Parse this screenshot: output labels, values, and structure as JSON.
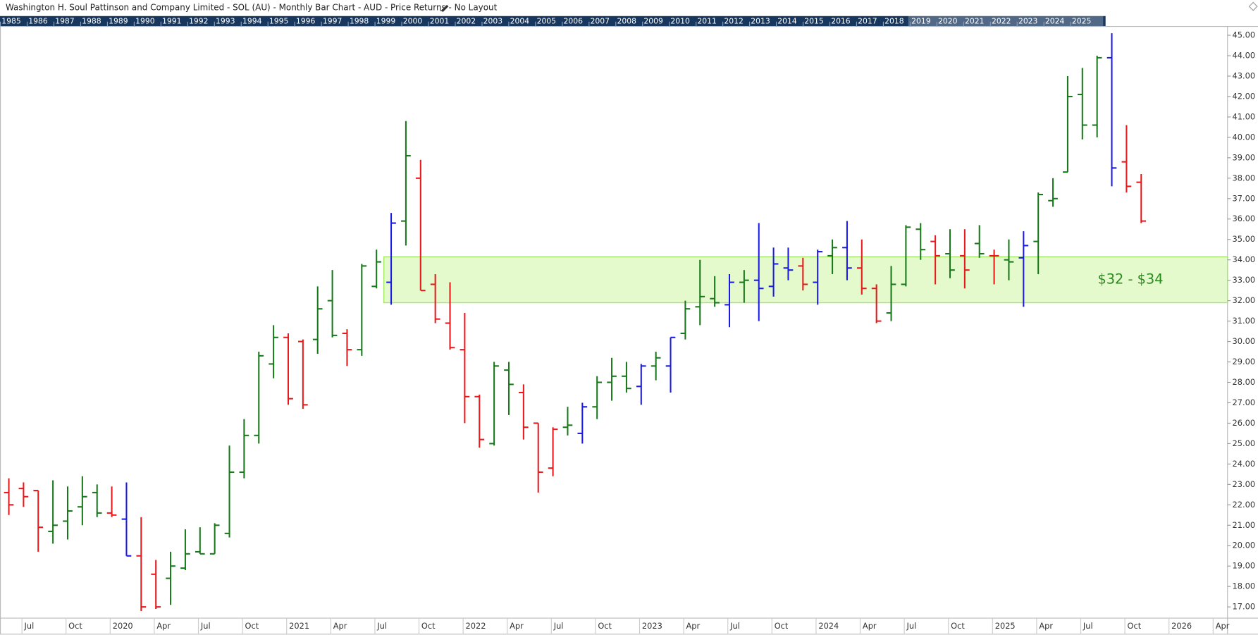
{
  "chart_data": {
    "type": "ohlc",
    "title": "Washington H. Soul Pattinson and Company Limited - SOL (AU) - Monthly Bar Chart - AUD - Price Returns - No Layout",
    "years": [
      "1985",
      "1986",
      "1987",
      "1988",
      "1989",
      "1990",
      "1991",
      "1992",
      "1993",
      "1994",
      "1995",
      "1996",
      "1997",
      "1998",
      "1999",
      "2000",
      "2001",
      "2002",
      "2003",
      "2004",
      "2005",
      "2006",
      "2007",
      "2008",
      "2009",
      "2010",
      "2011",
      "2012",
      "2013",
      "2014",
      "2015",
      "2016",
      "2017",
      "2018",
      "2019",
      "2020",
      "2021",
      "2022",
      "2023",
      "2024",
      "2025"
    ],
    "categories": [
      null,
      "Jul",
      null,
      null,
      "Oct",
      null,
      null,
      "2020",
      null,
      null,
      "Apr",
      null,
      null,
      "Jul",
      null,
      null,
      "Oct",
      null,
      null,
      "2021",
      null,
      null,
      "Apr",
      null,
      null,
      "Jul",
      null,
      null,
      "Oct",
      null,
      null,
      "2022",
      null,
      null,
      "Apr",
      null,
      null,
      "Jul",
      null,
      null,
      "Oct",
      null,
      null,
      "2023",
      null,
      null,
      "Apr",
      null,
      null,
      "Jul",
      null,
      null,
      "Oct",
      null,
      null,
      "2024",
      null,
      null,
      "Apr",
      null,
      null,
      "Jul",
      null,
      null,
      "Oct",
      null,
      null,
      "2025",
      null,
      null,
      "Apr",
      null,
      null,
      "Jul",
      null,
      null,
      "Oct",
      null,
      null,
      "2026",
      null,
      null,
      "Apr"
    ],
    "open": [
      22.6,
      22.8,
      22.7,
      20.7,
      21.2,
      21.9,
      22.6,
      21.6,
      21.3,
      19.5,
      18.6,
      18.4,
      18.9,
      19.7,
      19.6,
      20.6,
      23.6,
      25.4,
      28.9,
      30.2,
      30.0,
      30.1,
      32.0,
      30.4,
      29.6,
      32.7,
      32.9,
      35.9,
      38.0,
      32.8,
      30.9,
      29.6,
      27.3,
      25.0,
      28.6,
      27.5,
      26.0,
      23.8,
      25.8,
      25.5,
      26.8,
      28.0,
      28.3,
      27.8,
      28.8,
      28.8,
      30.4,
      31.7,
      32.1,
      31.8,
      32.9,
      33.0,
      32.7,
      33.6,
      33.7,
      32.9,
      34.2,
      34.6,
      33.6,
      32.6,
      31.4,
      32.8,
      35.5,
      34.9,
      34.3,
      34.2,
      34.8,
      34.2,
      34.0,
      34.1,
      34.9,
      36.9,
      38.3,
      42.1,
      40.6,
      43.9,
      38.8,
      37.8,
      null,
      null,
      null,
      null,
      null
    ],
    "high": [
      23.3,
      23.1,
      22.7,
      23.2,
      22.9,
      23.4,
      23.0,
      22.9,
      23.1,
      21.4,
      19.3,
      19.7,
      20.8,
      20.9,
      21.1,
      24.9,
      26.2,
      29.5,
      30.8,
      30.4,
      30.1,
      32.7,
      33.5,
      30.6,
      33.8,
      34.5,
      36.3,
      40.8,
      38.9,
      33.3,
      32.9,
      31.4,
      27.4,
      29.0,
      29.0,
      27.9,
      26.0,
      25.8,
      26.8,
      27.0,
      28.3,
      29.2,
      29.0,
      28.9,
      29.5,
      30.2,
      32.0,
      34.0,
      33.2,
      33.3,
      33.5,
      35.8,
      34.6,
      34.6,
      34.1,
      34.5,
      35.0,
      35.9,
      35.0,
      32.8,
      33.7,
      35.7,
      35.8,
      35.2,
      35.5,
      35.5,
      35.7,
      34.5,
      35.0,
      35.4,
      37.3,
      38.0,
      43.0,
      43.4,
      44.0,
      45.1,
      40.6,
      38.2,
      null,
      null,
      null,
      null,
      null
    ],
    "low": [
      21.5,
      21.9,
      19.7,
      20.1,
      20.3,
      21.0,
      21.4,
      21.4,
      19.5,
      16.8,
      16.9,
      17.1,
      18.8,
      19.6,
      19.6,
      20.4,
      23.3,
      25.0,
      28.2,
      26.9,
      26.7,
      29.4,
      30.2,
      28.8,
      29.3,
      32.6,
      31.8,
      34.7,
      32.5,
      30.9,
      29.6,
      26.0,
      24.8,
      24.9,
      26.4,
      25.2,
      22.6,
      23.4,
      25.4,
      25.0,
      26.2,
      27.1,
      27.5,
      26.9,
      28.1,
      27.5,
      30.1,
      30.8,
      31.7,
      30.7,
      31.9,
      31.0,
      32.2,
      33.0,
      32.5,
      31.8,
      33.3,
      33.0,
      32.3,
      30.9,
      31.0,
      32.7,
      34.0,
      32.8,
      33.1,
      32.6,
      34.1,
      32.8,
      33.0,
      31.7,
      33.3,
      36.6,
      38.3,
      39.9,
      40.0,
      37.6,
      37.3,
      35.8,
      null,
      null,
      null,
      null,
      null
    ],
    "close": [
      22.0,
      22.4,
      20.9,
      21.0,
      21.7,
      22.4,
      21.6,
      21.5,
      19.5,
      17.0,
      17.0,
      19.0,
      19.6,
      19.6,
      21.0,
      23.6,
      25.4,
      29.3,
      30.2,
      27.2,
      26.9,
      31.6,
      30.3,
      29.6,
      33.7,
      33.9,
      35.8,
      39.1,
      32.5,
      31.1,
      29.7,
      27.3,
      25.2,
      28.8,
      27.9,
      25.8,
      23.6,
      25.7,
      25.9,
      26.8,
      28.0,
      28.3,
      27.7,
      28.8,
      29.2,
      30.2,
      31.6,
      32.2,
      31.9,
      32.9,
      33.0,
      32.6,
      33.8,
      33.5,
      32.8,
      34.4,
      34.6,
      33.6,
      32.6,
      31.0,
      32.8,
      35.6,
      34.5,
      34.2,
      33.5,
      33.5,
      34.3,
      34.2,
      33.9,
      34.7,
      37.2,
      37.0,
      42.0,
      40.6,
      43.9,
      38.5,
      37.6,
      35.9,
      null,
      null,
      null,
      null,
      null
    ],
    "bar_colors": [
      "#e8191b",
      "#e8191b",
      "#e8191b",
      "#17791a",
      "#17791a",
      "#17791a",
      "#17791a",
      "#e8191b",
      "#1a1ae0",
      "#e8191b",
      "#e8191b",
      "#17791a",
      "#17791a",
      "#17791a",
      "#17791a",
      "#17791a",
      "#17791a",
      "#17791a",
      "#17791a",
      "#e8191b",
      "#e8191b",
      "#17791a",
      "#17791a",
      "#e8191b",
      "#17791a",
      "#17791a",
      "#1a1ae0",
      "#17791a",
      "#e8191b",
      "#e8191b",
      "#e8191b",
      "#e8191b",
      "#e8191b",
      "#17791a",
      "#17791a",
      "#e8191b",
      "#e8191b",
      "#e8191b",
      "#17791a",
      "#1a1ae0",
      "#17791a",
      "#17791a",
      "#17791a",
      "#1a1ae0",
      "#17791a",
      "#1a1ae0",
      "#17791a",
      "#17791a",
      "#17791a",
      "#1a1ae0",
      "#17791a",
      "#1a1ae0",
      "#1a1ae0",
      "#1a1ae0",
      "#e8191b",
      "#1a1ae0",
      "#17791a",
      "#1a1ae0",
      "#e8191b",
      "#e8191b",
      "#17791a",
      "#17791a",
      "#17791a",
      "#e8191b",
      "#17791a",
      "#e8191b",
      "#17791a",
      "#e8191b",
      "#17791a",
      "#1a1ae0",
      "#17791a",
      "#17791a",
      "#17791a",
      "#17791a",
      "#17791a",
      "#1a1ae0",
      "#e8191b",
      "#e8191b",
      null,
      null,
      null,
      null,
      null
    ],
    "zone": {
      "low": 31.9,
      "high": 34.15,
      "label": "$32 - $34",
      "color": "#e4f9cc",
      "stroke": "#a2e865",
      "label_color": "#2a8c1e"
    },
    "ylim": [
      16.45,
      45.43
    ],
    "yticks": [
      {
        "value": 17,
        "label": "17.00"
      },
      {
        "value": 18,
        "label": "18.00"
      },
      {
        "value": 19,
        "label": "19.00"
      },
      {
        "value": 20,
        "label": "20.00"
      },
      {
        "value": 21,
        "label": "21.00"
      },
      {
        "value": 22,
        "label": "22.00"
      },
      {
        "value": 23,
        "label": "23.00"
      },
      {
        "value": 24,
        "label": "24.00"
      },
      {
        "value": 25,
        "label": "25.00"
      },
      {
        "value": 26,
        "label": "26.00"
      },
      {
        "value": 27,
        "label": "27.00"
      },
      {
        "value": 28,
        "label": "28.00"
      },
      {
        "value": 29,
        "label": "29.00"
      },
      {
        "value": 30,
        "label": "30.00"
      },
      {
        "value": 31,
        "label": "31.00"
      },
      {
        "value": 32,
        "label": "32.00"
      },
      {
        "value": 33,
        "label": "33.00"
      },
      {
        "value": 34,
        "label": "34.00"
      },
      {
        "value": 35,
        "label": "35.00"
      },
      {
        "value": 36,
        "label": "36.00"
      },
      {
        "value": 37,
        "label": "37.00"
      },
      {
        "value": 38,
        "label": "38.00"
      },
      {
        "value": 39,
        "label": "39.00"
      },
      {
        "value": 40,
        "label": "40.00"
      },
      {
        "value": 41,
        "label": "41.00"
      },
      {
        "value": 42,
        "label": "42.00"
      },
      {
        "value": 43,
        "label": "43.00"
      },
      {
        "value": 44,
        "label": "44.00"
      },
      {
        "value": 45,
        "label": "45.00"
      }
    ]
  }
}
